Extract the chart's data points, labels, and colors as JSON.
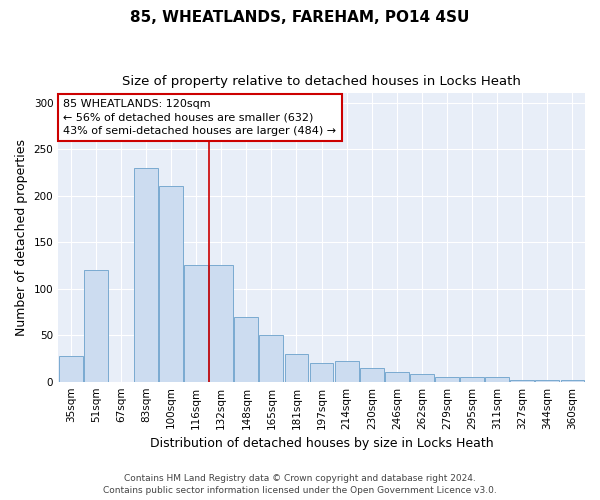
{
  "title": "85, WHEATLANDS, FAREHAM, PO14 4SU",
  "subtitle": "Size of property relative to detached houses in Locks Heath",
  "xlabel": "Distribution of detached houses by size in Locks Heath",
  "ylabel": "Number of detached properties",
  "categories": [
    "35sqm",
    "51sqm",
    "67sqm",
    "83sqm",
    "100sqm",
    "116sqm",
    "132sqm",
    "148sqm",
    "165sqm",
    "181sqm",
    "197sqm",
    "214sqm",
    "230sqm",
    "246sqm",
    "262sqm",
    "279sqm",
    "295sqm",
    "311sqm",
    "327sqm",
    "344sqm",
    "360sqm"
  ],
  "values": [
    28,
    120,
    0,
    230,
    210,
    125,
    125,
    70,
    50,
    30,
    20,
    22,
    15,
    10,
    8,
    5,
    5,
    5,
    2,
    2,
    2
  ],
  "bar_color": "#ccdcf0",
  "bar_edge_color": "#7aaad0",
  "vline_index": 5.5,
  "vline_color": "#cc0000",
  "annotation_text": "85 WHEATLANDS: 120sqm\n← 56% of detached houses are smaller (632)\n43% of semi-detached houses are larger (484) →",
  "annotation_box_facecolor": "#ffffff",
  "annotation_box_edgecolor": "#cc0000",
  "ylim": [
    0,
    310
  ],
  "yticks": [
    0,
    50,
    100,
    150,
    200,
    250,
    300
  ],
  "plot_bg_color": "#e8eef8",
  "fig_bg_color": "#ffffff",
  "footer": "Contains HM Land Registry data © Crown copyright and database right 2024.\nContains public sector information licensed under the Open Government Licence v3.0.",
  "title_fontsize": 11,
  "subtitle_fontsize": 9.5,
  "ylabel_fontsize": 9,
  "xlabel_fontsize": 9,
  "tick_fontsize": 7.5,
  "annotation_fontsize": 8,
  "footer_fontsize": 6.5
}
